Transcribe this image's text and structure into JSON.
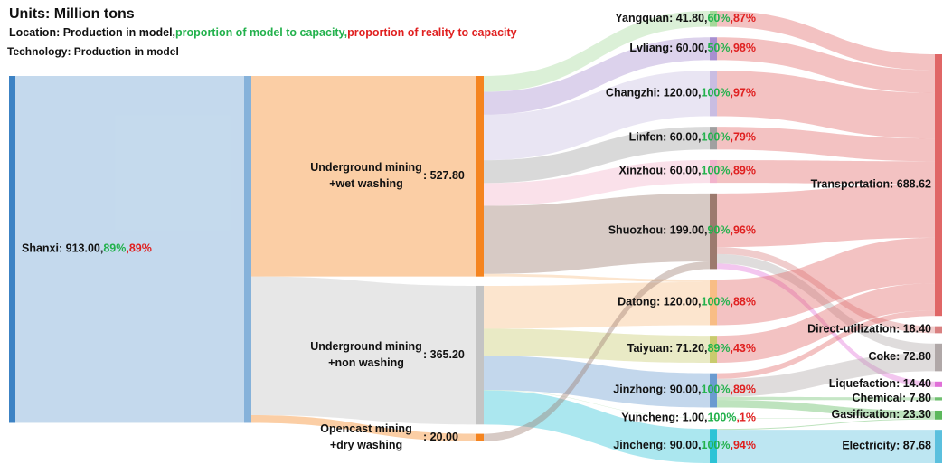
{
  "chart_data": {
    "type": "sankey",
    "title": "Units: Million tons",
    "legend": [
      "Location: Production in model,",
      "proportion of model to capacity,",
      "proportion of reality to capacity"
    ],
    "subtitle": "Technology: Production in model",
    "columns": [
      {
        "nodes": [
          {
            "label": "Shanxi: 913.00,",
            "model": "89%",
            "reality": ",89%",
            "value": 913,
            "color": "#3c82c4"
          }
        ]
      },
      {
        "nodes": [
          {
            "lines": [
              "Underground mining",
              "+wet washing"
            ],
            "value_label": ": 527.80",
            "value": 527.8,
            "color": "#f5841f"
          },
          {
            "lines": [
              "Underground mining",
              "+non washing"
            ],
            "value_label": ": 365.20",
            "value": 365.2,
            "color": "#c4c4c4"
          },
          {
            "lines": [
              "Opencast mining",
              "+dry washing"
            ],
            "value_label": ": 20.00",
            "value": 20,
            "color": "#f5841f"
          }
        ]
      },
      {
        "nodes": [
          {
            "label": "Yangquan: 41.80,",
            "model": "60%",
            "reality": ",87%",
            "value": 41.8,
            "color": "#a6d99a"
          },
          {
            "label": "Lvliang: 60.00,",
            "model": "50%",
            "reality": ",98%",
            "value": 60,
            "color": "#a88fd0"
          },
          {
            "label": "Changzhi: 120.00,",
            "model": "100%",
            "reality": ",97%",
            "value": 120,
            "color": "#c9bde2"
          },
          {
            "label": "Linfen: 60.00,",
            "model": "100%",
            "reality": ",79%",
            "value": 60,
            "color": "#a0a0a0"
          },
          {
            "label": "Xinzhou: 60.00,",
            "model": "100%",
            "reality": ",89%",
            "value": 60,
            "color": "#f2b3cb"
          },
          {
            "label": "Shuozhou: 199.00,",
            "model": "90%",
            "reality": ",96%",
            "value": 199,
            "color": "#9c7a6e"
          },
          {
            "label": "Datong: 120.00,",
            "model": "100%",
            "reality": ",88%",
            "value": 120,
            "color": "#f8bd85"
          },
          {
            "label": "Taiyuan: 71.20,",
            "model": "89%",
            "reality": ",43%",
            "value": 71.2,
            "color": "#c9cb6e"
          },
          {
            "label": "Jinzhong: 90.00,",
            "model": "100%",
            "reality": ",89%",
            "value": 90,
            "color": "#6a9bd0"
          },
          {
            "label": "Yuncheng: 1.00,",
            "model": "100%",
            "reality": ",1%",
            "value": 1,
            "color": "#8fcf8a"
          },
          {
            "label": "Jincheng: 90.00,",
            "model": "100%",
            "reality": ",94%",
            "value": 90,
            "color": "#2cc3d6"
          }
        ]
      },
      {
        "nodes": [
          {
            "label": "Transportation: 688.62",
            "value": 688.62,
            "color": "#e06666"
          },
          {
            "label": "Direct-utilization: 18.40",
            "value": 18.4,
            "color": "#d98080"
          },
          {
            "label": "Coke: 72.80",
            "value": 72.8,
            "color": "#b0a8a8"
          },
          {
            "label": "Liquefaction: 14.40",
            "value": 14.4,
            "color": "#e070d8"
          },
          {
            "label": "Chemical: 7.80",
            "value": 7.8,
            "color": "#70c070"
          },
          {
            "label": "Gasification: 23.30",
            "value": 23.3,
            "color": "#5cb85c"
          },
          {
            "label": "Electricity: 87.68",
            "value": 87.68,
            "color": "#5bc0de"
          }
        ]
      }
    ],
    "links": [
      [
        {
          "source": 0,
          "target": 0,
          "value": 527.8
        },
        {
          "source": 0,
          "target": 1,
          "value": 365.2
        },
        {
          "source": 0,
          "target": 2,
          "value": 20
        }
      ],
      [
        {
          "source": 0,
          "target": 0,
          "value": 41.8
        },
        {
          "source": 0,
          "target": 1,
          "value": 60
        },
        {
          "source": 0,
          "target": 2,
          "value": 120
        },
        {
          "source": 0,
          "target": 3,
          "value": 60
        },
        {
          "source": 0,
          "target": 4,
          "value": 60
        },
        {
          "source": 0,
          "target": 5,
          "value": 179
        },
        {
          "source": 0,
          "target": 6,
          "value": 7
        },
        {
          "source": 1,
          "target": 6,
          "value": 113
        },
        {
          "source": 1,
          "target": 7,
          "value": 71.2
        },
        {
          "source": 1,
          "target": 8,
          "value": 90
        },
        {
          "source": 1,
          "target": 9,
          "value": 1
        },
        {
          "source": 1,
          "target": 10,
          "value": 90
        },
        {
          "source": 2,
          "target": 5,
          "value": 20
        }
      ],
      [
        {
          "source": 0,
          "target": 0,
          "value": 41.8
        },
        {
          "source": 1,
          "target": 0,
          "value": 60
        },
        {
          "source": 2,
          "target": 0,
          "value": 120
        },
        {
          "source": 3,
          "target": 0,
          "value": 60
        },
        {
          "source": 4,
          "target": 0,
          "value": 60
        },
        {
          "source": 5,
          "target": 0,
          "value": 141.2
        },
        {
          "source": 5,
          "target": 1,
          "value": 18.4
        },
        {
          "source": 5,
          "target": 2,
          "value": 25
        },
        {
          "source": 5,
          "target": 3,
          "value": 14.4
        },
        {
          "source": 6,
          "target": 0,
          "value": 120
        },
        {
          "source": 7,
          "target": 0,
          "value": 71.2
        },
        {
          "source": 8,
          "target": 0,
          "value": 14.42
        },
        {
          "source": 8,
          "target": 2,
          "value": 47.8
        },
        {
          "source": 8,
          "target": 4,
          "value": 7.8
        },
        {
          "source": 8,
          "target": 5,
          "value": 19.98
        },
        {
          "source": 9,
          "target": 5,
          "value": 1
        },
        {
          "source": 10,
          "target": 5,
          "value": 2.32
        },
        {
          "source": 10,
          "target": 6,
          "value": 87.68
        }
      ]
    ]
  }
}
